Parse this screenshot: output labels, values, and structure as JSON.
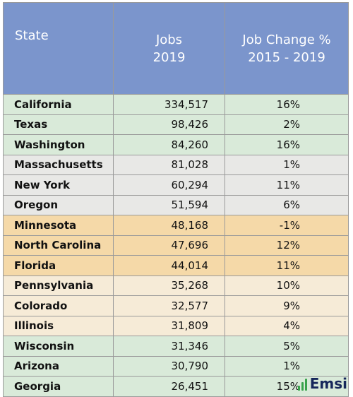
{
  "header": {
    "state": "State",
    "jobs_line1": "Jobs",
    "jobs_line2": "2019",
    "change_line1": "Job Change %",
    "change_line2": "2015 - 2019"
  },
  "rows": [
    {
      "state": "California",
      "jobs": "334,517",
      "change": "16%",
      "group": "green"
    },
    {
      "state": "Texas",
      "jobs": "98,426",
      "change": "2%",
      "group": "green"
    },
    {
      "state": "Washington",
      "jobs": "84,260",
      "change": "16%",
      "group": "green"
    },
    {
      "state": "Massachusetts",
      "jobs": "81,028",
      "change": "1%",
      "group": "grey"
    },
    {
      "state": "New York",
      "jobs": "60,294",
      "change": "11%",
      "group": "grey"
    },
    {
      "state": "Oregon",
      "jobs": "51,594",
      "change": "6%",
      "group": "grey"
    },
    {
      "state": "Minnesota",
      "jobs": "48,168",
      "change": "-1%",
      "group": "orange"
    },
    {
      "state": "North Carolina",
      "jobs": "47,696",
      "change": "12%",
      "group": "orange"
    },
    {
      "state": "Florida",
      "jobs": "44,014",
      "change": "11%",
      "group": "orange"
    },
    {
      "state": "Pennsylvania",
      "jobs": "35,268",
      "change": "10%",
      "group": "tan"
    },
    {
      "state": "Colorado",
      "jobs": "32,577",
      "change": "9%",
      "group": "tan"
    },
    {
      "state": "Illinois",
      "jobs": "31,809",
      "change": "4%",
      "group": "tan"
    },
    {
      "state": "Wisconsin",
      "jobs": "31,346",
      "change": "5%",
      "group": "green"
    },
    {
      "state": "Arizona",
      "jobs": "30,790",
      "change": "1%",
      "group": "green"
    },
    {
      "state": "Georgia",
      "jobs": "26,451",
      "change": "15%",
      "group": "green"
    }
  ],
  "logo": {
    "text": "Emsi",
    "icon": "bar-chart-icon"
  },
  "colors": {
    "header": "#7b95cc",
    "green": "#d9ead9",
    "grey": "#e8e8e6",
    "orange": "#f5d9a8",
    "tan": "#f6ebd7",
    "logo_text": "#16275b",
    "logo_icon": "#3aa34c"
  }
}
